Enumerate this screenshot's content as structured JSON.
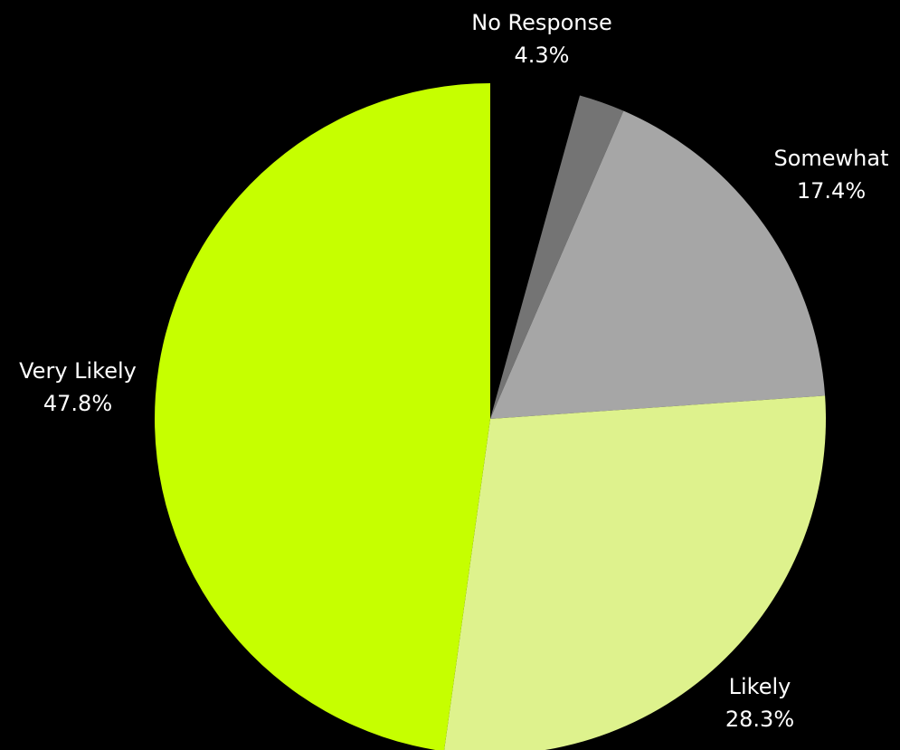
{
  "chart_data": {
    "type": "pie",
    "title": "",
    "slices": [
      {
        "label": "No Response",
        "value_label": "4.3%",
        "value": 4.3,
        "color": "#000000"
      },
      {
        "label": "",
        "value_label": "",
        "value": 2.2,
        "color": "#747474"
      },
      {
        "label": "Somewhat",
        "value_label": "17.4%",
        "value": 17.4,
        "color": "#a6a6a6"
      },
      {
        "label": "Likely",
        "value_label": "28.3%",
        "value": 28.3,
        "color": "#def28d"
      },
      {
        "label": "Very Likely",
        "value_label": "47.8%",
        "value": 47.8,
        "color": "#c6ff00"
      }
    ]
  }
}
